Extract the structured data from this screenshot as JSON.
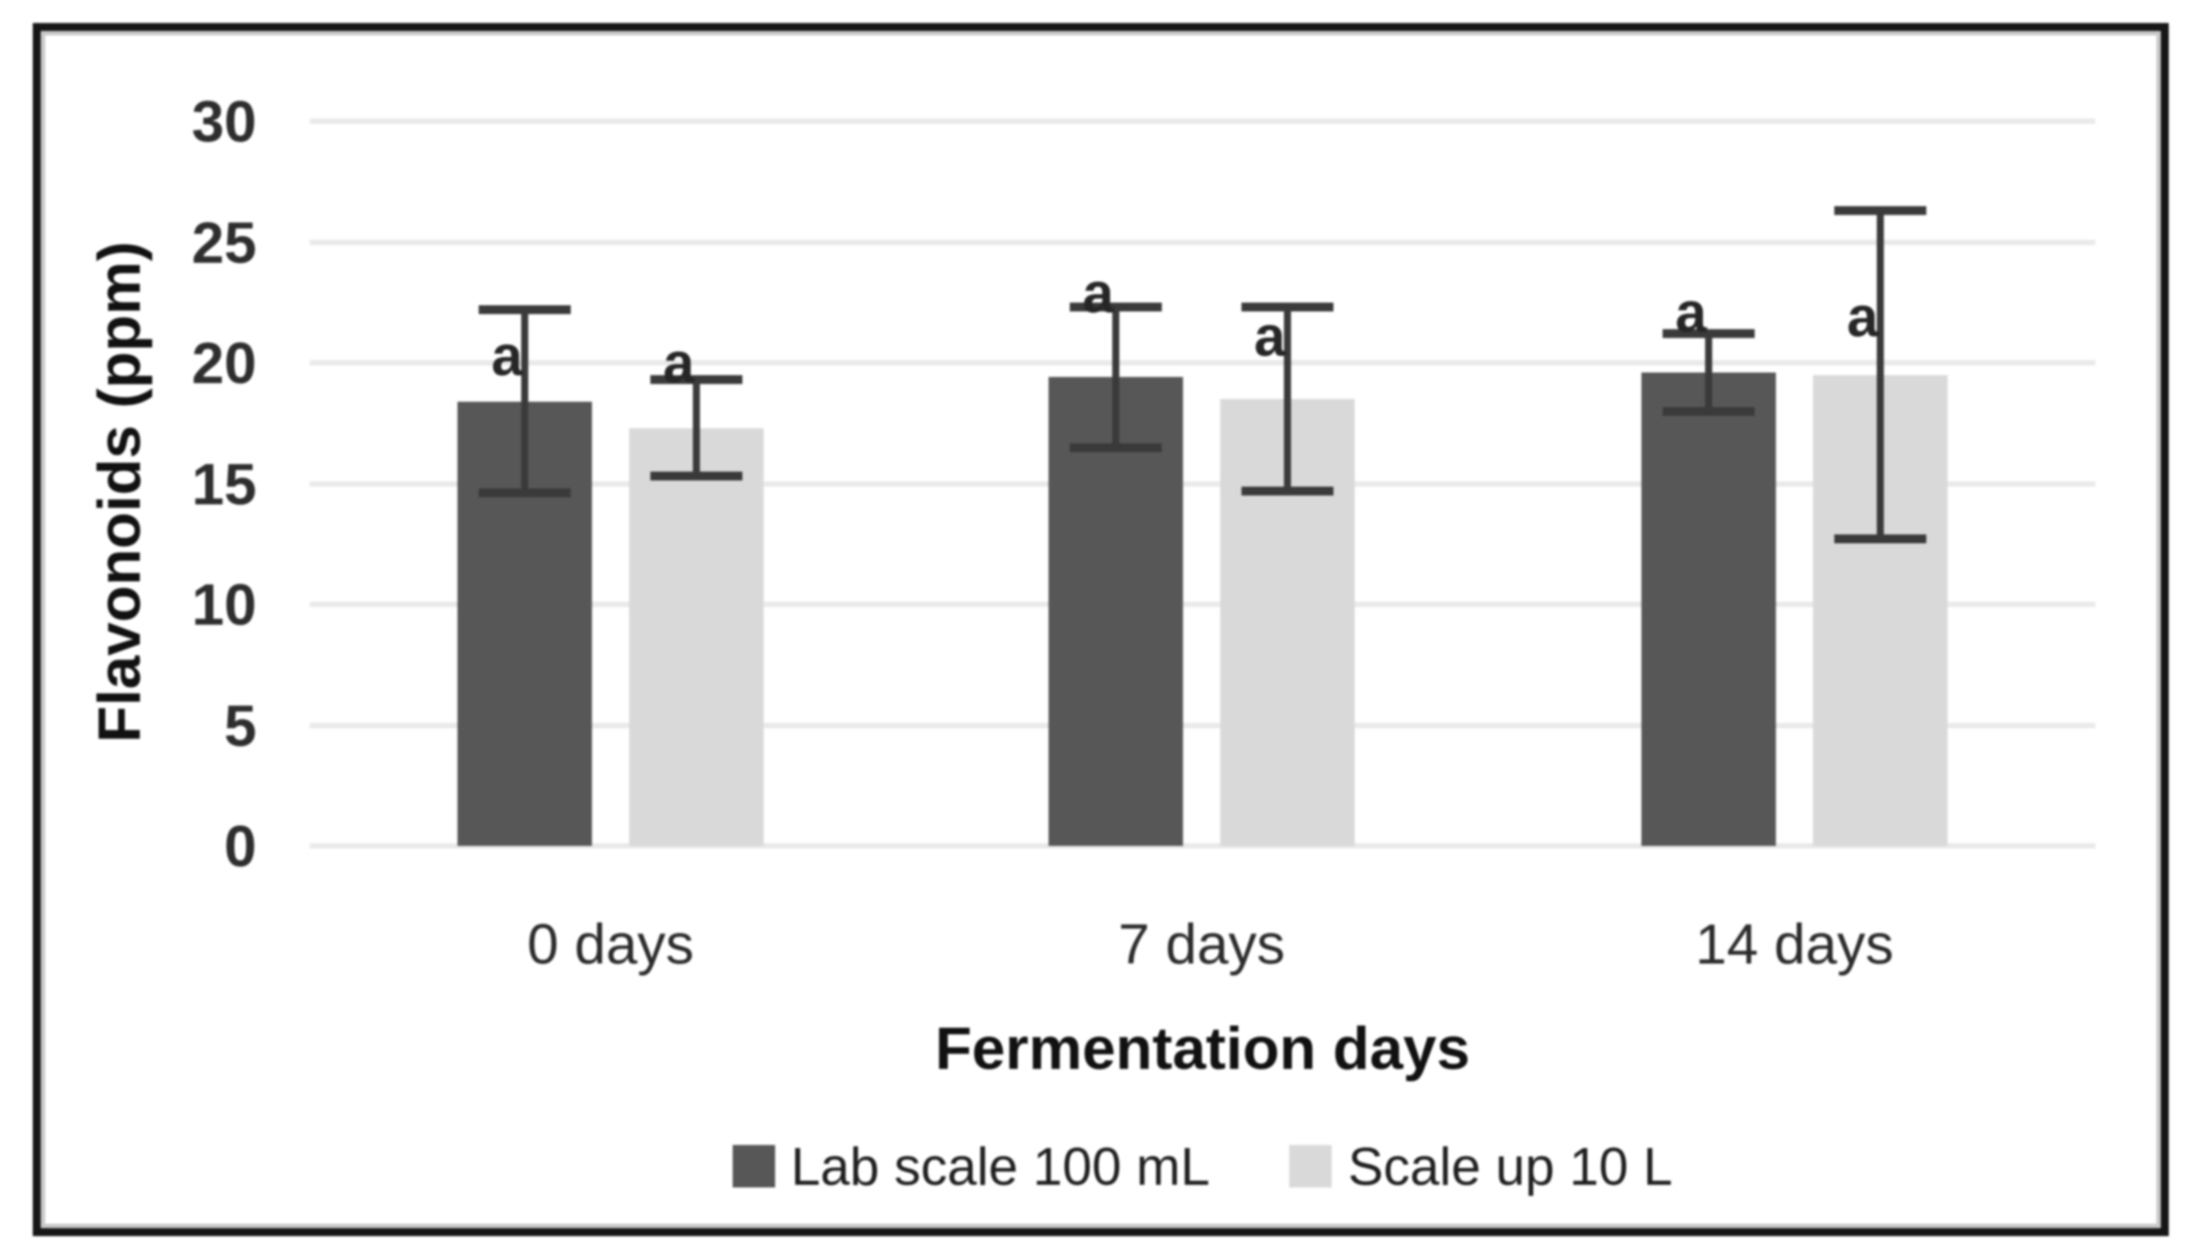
{
  "figure": {
    "background": "#ffffff",
    "frame_color": "#161616"
  },
  "chart_data": {
    "type": "bar",
    "title": "",
    "categories": [
      "0 days",
      "7 days",
      "14 days"
    ],
    "series": [
      {
        "name": "Lab scale 100 mL",
        "color": "#575757",
        "values": [
          18.4,
          19.4,
          19.6
        ],
        "error": [
          3.8,
          2.9,
          1.6
        ]
      },
      {
        "name": "Scale up 10 L",
        "color": "#d9d9d9",
        "values": [
          17.3,
          18.5,
          19.5
        ],
        "error": [
          2.0,
          3.8,
          6.8
        ]
      }
    ],
    "annotations": {
      "label": "a",
      "note": "significance letter beside each error bar",
      "positions_ppm": [
        [
          20.3,
          22.9,
          22.1
        ],
        [
          20.0,
          21.1,
          21.9
        ]
      ]
    },
    "xlabel": "Fermentation days",
    "ylabel": "Flavonoids (ppm)",
    "ylim": [
      0,
      30
    ],
    "ytick_step": 5,
    "yticks": [
      "0",
      "5",
      "10",
      "15",
      "20",
      "25",
      "30"
    ],
    "grid": true,
    "legend_position": "bottom",
    "gridline_color": "#e9e9e9",
    "error_bar_color": "#3a3a3a",
    "text_color": "#2b2b2b"
  }
}
